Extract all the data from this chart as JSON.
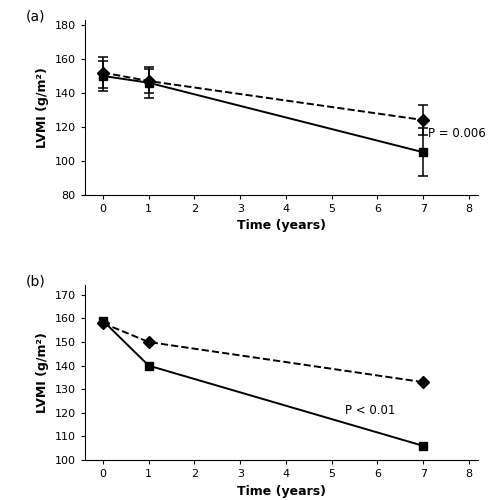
{
  "panel_a": {
    "label": "(a)",
    "solid_line": {
      "marker": "s",
      "x": [
        0,
        1,
        7
      ],
      "y": [
        150,
        146,
        105
      ],
      "yerr": [
        9,
        9,
        14
      ],
      "linestyle": "-",
      "color": "black"
    },
    "dashed_line": {
      "marker": "D",
      "x": [
        0,
        1,
        7
      ],
      "y": [
        152,
        147,
        124
      ],
      "yerr": [
        9,
        7,
        9
      ],
      "linestyle": "--",
      "color": "black"
    },
    "ylabel": "LVMI (g/m²)",
    "xlabel": "Time (years)",
    "ylim": [
      80,
      183
    ],
    "xlim": [
      -0.4,
      8.2
    ],
    "yticks": [
      80,
      100,
      120,
      140,
      160,
      180
    ],
    "xticks": [
      0,
      1,
      2,
      3,
      4,
      5,
      6,
      7,
      8
    ],
    "pvalue_text": "P = 0.006",
    "pvalue_x": 7.1,
    "pvalue_y": 116
  },
  "panel_b": {
    "label": "(b)",
    "solid_line": {
      "marker": "s",
      "x": [
        0,
        1,
        7
      ],
      "y": [
        159,
        140,
        106
      ],
      "linestyle": "-",
      "color": "black"
    },
    "dashed_line": {
      "marker": "D",
      "x": [
        0,
        1,
        7
      ],
      "y": [
        158,
        150,
        133
      ],
      "linestyle": "--",
      "color": "black"
    },
    "ylabel": "LVMI (g/m²)",
    "xlabel": "Time (years)",
    "ylim": [
      100,
      174
    ],
    "xlim": [
      -0.4,
      8.2
    ],
    "yticks": [
      100,
      110,
      120,
      130,
      140,
      150,
      160,
      170
    ],
    "xticks": [
      0,
      1,
      2,
      3,
      4,
      5,
      6,
      7,
      8
    ],
    "pvalue_text": "P < 0.01",
    "pvalue_x": 5.3,
    "pvalue_y": 121
  }
}
